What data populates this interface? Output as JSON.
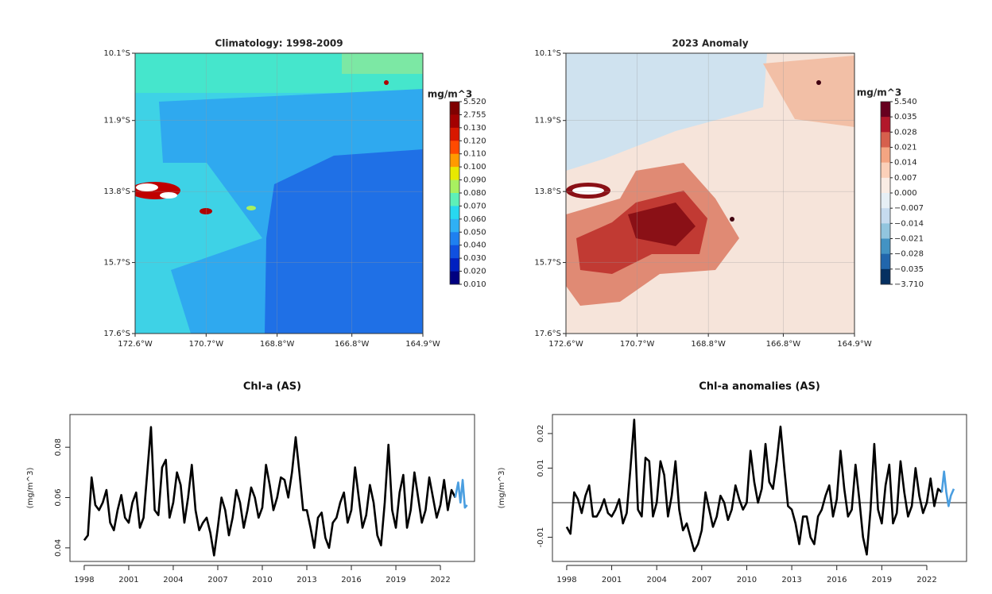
{
  "chart_data": [
    {
      "type": "map",
      "title": "Climatology: 1998-2009",
      "colorbar_label": "mg/m^3",
      "xlim": [
        -172.6,
        -164.9
      ],
      "ylim": [
        -17.6,
        -10.1
      ],
      "xticks": [
        {
          "value": -172.6,
          "label": "172.6°W"
        },
        {
          "value": -170.7,
          "label": "170.7°W"
        },
        {
          "value": -168.8,
          "label": "168.8°W"
        },
        {
          "value": -166.8,
          "label": "166.8°W"
        },
        {
          "value": -164.9,
          "label": "164.9°W"
        }
      ],
      "yticks": [
        {
          "value": -10.1,
          "label": "10.1°S"
        },
        {
          "value": -11.9,
          "label": "11.9°S"
        },
        {
          "value": -13.8,
          "label": "13.8°S"
        },
        {
          "value": -15.7,
          "label": "15.7°S"
        },
        {
          "value": -17.6,
          "label": "17.6°S"
        }
      ],
      "grid": true,
      "colorbar_levels": [
        {
          "value": 5.52,
          "label": "5.520"
        },
        {
          "value": 2.755,
          "label": "2.755"
        },
        {
          "value": 0.13,
          "label": "0.130"
        },
        {
          "value": 0.12,
          "label": "0.120"
        },
        {
          "value": 0.11,
          "label": "0.110"
        },
        {
          "value": 0.1,
          "label": "0.100"
        },
        {
          "value": 0.09,
          "label": "0.090"
        },
        {
          "value": 0.08,
          "label": "0.080"
        },
        {
          "value": 0.07,
          "label": "0.070"
        },
        {
          "value": 0.06,
          "label": "0.060"
        },
        {
          "value": 0.05,
          "label": "0.050"
        },
        {
          "value": 0.04,
          "label": "0.040"
        },
        {
          "value": 0.03,
          "label": "0.030"
        },
        {
          "value": 0.02,
          "label": "0.020"
        },
        {
          "value": 0.01,
          "label": "0.010"
        }
      ],
      "colorbar_colors": [
        "#7f0000",
        "#a30000",
        "#d81800",
        "#ff4a00",
        "#ff9a00",
        "#e8e800",
        "#a8f060",
        "#5ef0b8",
        "#28d8f0",
        "#2fb0f5",
        "#1f80f0",
        "#1050e0",
        "#0020c0",
        "#000080"
      ]
    },
    {
      "type": "map",
      "title": "2023 Anomaly",
      "colorbar_label": "mg/m^3",
      "xlim": [
        -172.6,
        -164.9
      ],
      "ylim": [
        -17.6,
        -10.1
      ],
      "xticks": [
        {
          "value": -172.6,
          "label": "172.6°W"
        },
        {
          "value": -170.7,
          "label": "170.7°W"
        },
        {
          "value": -168.8,
          "label": "168.8°W"
        },
        {
          "value": -166.8,
          "label": "166.8°W"
        },
        {
          "value": -164.9,
          "label": "164.9°W"
        }
      ],
      "yticks": [
        {
          "value": -10.1,
          "label": "10.1°S"
        },
        {
          "value": -11.9,
          "label": "11.9°S"
        },
        {
          "value": -13.8,
          "label": "13.8°S"
        },
        {
          "value": -15.7,
          "label": "15.7°S"
        },
        {
          "value": -17.6,
          "label": "17.6°S"
        }
      ],
      "grid": true,
      "colorbar_levels": [
        {
          "value": 5.54,
          "label": "5.540"
        },
        {
          "value": 0.035,
          "label": "0.035"
        },
        {
          "value": 0.028,
          "label": "0.028"
        },
        {
          "value": 0.021,
          "label": "0.021"
        },
        {
          "value": 0.014,
          "label": "0.014"
        },
        {
          "value": 0.007,
          "label": "0.007"
        },
        {
          "value": 0,
          "label": "0.000"
        },
        {
          "value": -0.007,
          "label": "−0.007"
        },
        {
          "value": -0.014,
          "label": "−0.014"
        },
        {
          "value": -0.021,
          "label": "−0.021"
        },
        {
          "value": -0.028,
          "label": "−0.028"
        },
        {
          "value": -0.035,
          "label": "−0.035"
        },
        {
          "value": -3.71,
          "label": "−3.710"
        }
      ],
      "colorbar_colors": [
        "#67001f",
        "#b2182b",
        "#d6604d",
        "#f4a582",
        "#fbd0b9",
        "#f9ece4",
        "#e6eff5",
        "#c6dbef",
        "#92c5de",
        "#4393c3",
        "#2166ac",
        "#053061"
      ]
    },
    {
      "type": "line",
      "title": "Chl-a (AS)",
      "y_label": "(mg/m^3)",
      "xlim": [
        1997.04,
        2024.3
      ],
      "ylim": [
        0.0346,
        0.093
      ],
      "xticks": [
        1998,
        2001,
        2004,
        2007,
        2010,
        2013,
        2016,
        2019,
        2022
      ],
      "yticks": [
        0.04,
        0.06,
        0.08
      ],
      "series": [
        {
          "color": "#000000",
          "x": [
            1998.0,
            1998.25,
            1998.5,
            1998.75,
            1999.0,
            1999.25,
            1999.5,
            1999.75,
            2000.0,
            2000.25,
            2000.5,
            2000.75,
            2001.0,
            2001.25,
            2001.5,
            2001.75,
            2002.0,
            2002.25,
            2002.5,
            2002.75,
            2003.0,
            2003.25,
            2003.5,
            2003.75,
            2004.0,
            2004.25,
            2004.5,
            2004.75,
            2005.0,
            2005.25,
            2005.5,
            2005.75,
            2006.0,
            2006.25,
            2006.5,
            2006.75,
            2007.0,
            2007.25,
            2007.5,
            2007.75,
            2008.0,
            2008.25,
            2008.5,
            2008.75,
            2009.0,
            2009.25,
            2009.5,
            2009.75,
            2010.0,
            2010.25,
            2010.5,
            2010.75,
            2011.0,
            2011.25,
            2011.5,
            2011.75,
            2012.0,
            2012.25,
            2012.5,
            2012.75,
            2013.0,
            2013.25,
            2013.5,
            2013.75,
            2014.0,
            2014.25,
            2014.5,
            2014.75,
            2015.0,
            2015.25,
            2015.5,
            2015.75,
            2016.0,
            2016.25,
            2016.5,
            2016.75,
            2017.0,
            2017.25,
            2017.5,
            2017.75,
            2018.0,
            2018.25,
            2018.5,
            2018.75,
            2019.0,
            2019.25,
            2019.5,
            2019.75,
            2020.0,
            2020.25,
            2020.5,
            2020.75,
            2021.0,
            2021.25,
            2021.5,
            2021.75,
            2022.0,
            2022.25,
            2022.5,
            2022.75,
            2023.0
          ],
          "values": [
            0.043,
            0.045,
            0.068,
            0.057,
            0.055,
            0.058,
            0.063,
            0.05,
            0.047,
            0.055,
            0.061,
            0.052,
            0.05,
            0.058,
            0.062,
            0.048,
            0.052,
            0.07,
            0.088,
            0.055,
            0.053,
            0.072,
            0.075,
            0.052,
            0.058,
            0.07,
            0.065,
            0.05,
            0.06,
            0.073,
            0.055,
            0.047,
            0.05,
            0.052,
            0.046,
            0.037,
            0.048,
            0.06,
            0.055,
            0.045,
            0.052,
            0.063,
            0.058,
            0.048,
            0.055,
            0.064,
            0.06,
            0.052,
            0.056,
            0.073,
            0.065,
            0.055,
            0.06,
            0.068,
            0.067,
            0.06,
            0.07,
            0.084,
            0.07,
            0.055,
            0.055,
            0.048,
            0.04,
            0.052,
            0.054,
            0.044,
            0.04,
            0.05,
            0.052,
            0.058,
            0.062,
            0.05,
            0.055,
            0.072,
            0.06,
            0.048,
            0.053,
            0.065,
            0.058,
            0.045,
            0.041,
            0.058,
            0.081,
            0.055,
            0.048,
            0.062,
            0.069,
            0.048,
            0.055,
            0.07,
            0.06,
            0.05,
            0.055,
            0.068,
            0.06,
            0.052,
            0.057,
            0.067,
            0.055,
            0.063,
            0.06
          ]
        },
        {
          "color": "#4a9ee0",
          "x": [
            2023.0,
            2023.2,
            2023.35,
            2023.5,
            2023.65,
            2023.8
          ],
          "values": [
            0.06,
            0.066,
            0.058,
            0.067,
            0.056,
            0.057
          ]
        }
      ]
    },
    {
      "type": "line",
      "title": "Chl-a anomalies (AS)",
      "y_label": "(mg/m^3)",
      "xlim": [
        1997.05,
        2024.65
      ],
      "ylim": [
        -0.017,
        0.0255
      ],
      "xticks": [
        1998,
        2001,
        2004,
        2007,
        2010,
        2013,
        2016,
        2019,
        2022
      ],
      "yticks": [
        -0.01,
        0.01,
        0.02
      ],
      "reference_line": 0,
      "series": [
        {
          "color": "#000000",
          "x": [
            1998.0,
            1998.25,
            1998.5,
            1998.75,
            1999.0,
            1999.25,
            1999.5,
            1999.75,
            2000.0,
            2000.25,
            2000.5,
            2000.75,
            2001.0,
            2001.25,
            2001.5,
            2001.75,
            2002.0,
            2002.25,
            2002.5,
            2002.75,
            2003.0,
            2003.25,
            2003.5,
            2003.75,
            2004.0,
            2004.25,
            2004.5,
            2004.75,
            2005.0,
            2005.25,
            2005.5,
            2005.75,
            2006.0,
            2006.25,
            2006.5,
            2006.75,
            2007.0,
            2007.25,
            2007.5,
            2007.75,
            2008.0,
            2008.25,
            2008.5,
            2008.75,
            2009.0,
            2009.25,
            2009.5,
            2009.75,
            2010.0,
            2010.25,
            2010.5,
            2010.75,
            2011.0,
            2011.25,
            2011.5,
            2011.75,
            2012.0,
            2012.25,
            2012.5,
            2012.75,
            2013.0,
            2013.25,
            2013.5,
            2013.75,
            2014.0,
            2014.25,
            2014.5,
            2014.75,
            2015.0,
            2015.25,
            2015.5,
            2015.75,
            2016.0,
            2016.25,
            2016.5,
            2016.75,
            2017.0,
            2017.25,
            2017.5,
            2017.75,
            2018.0,
            2018.25,
            2018.5,
            2018.75,
            2019.0,
            2019.25,
            2019.5,
            2019.75,
            2020.0,
            2020.25,
            2020.5,
            2020.75,
            2021.0,
            2021.25,
            2021.5,
            2021.75,
            2022.0,
            2022.25,
            2022.5,
            2022.75,
            2023.0
          ],
          "values": [
            -0.007,
            -0.009,
            0.003,
            0.001,
            -0.003,
            0.002,
            0.005,
            -0.004,
            -0.004,
            -0.002,
            0.001,
            -0.003,
            -0.004,
            -0.002,
            0.001,
            -0.006,
            -0.003,
            0.01,
            0.024,
            -0.002,
            -0.004,
            0.013,
            0.012,
            -0.004,
            0,
            0.012,
            0.008,
            -0.004,
            0.002,
            0.012,
            -0.002,
            -0.008,
            -0.006,
            -0.01,
            -0.014,
            -0.012,
            -0.008,
            0.003,
            -0.002,
            -0.007,
            -0.004,
            0.002,
            0,
            -0.005,
            -0.002,
            0.005,
            0.001,
            -0.002,
            0,
            0.015,
            0.006,
            0,
            0.004,
            0.017,
            0.006,
            0.004,
            0.012,
            0.022,
            0.01,
            -0.001,
            -0.002,
            -0.006,
            -0.012,
            -0.004,
            -0.004,
            -0.01,
            -0.012,
            -0.004,
            -0.002,
            0.002,
            0.005,
            -0.004,
            0.001,
            0.015,
            0.004,
            -0.004,
            -0.002,
            0.011,
            0.001,
            -0.01,
            -0.015,
            -0.002,
            0.017,
            -0.002,
            -0.006,
            0.005,
            0.011,
            -0.006,
            -0.003,
            0.012,
            0.003,
            -0.004,
            -0.001,
            0.01,
            0.002,
            -0.003,
            0,
            0.007,
            -0.001,
            0.004,
            0.003
          ]
        },
        {
          "color": "#4a9ee0",
          "x": [
            2023.0,
            2023.15,
            2023.3,
            2023.45,
            2023.6,
            2023.8
          ],
          "values": [
            0.003,
            0.009,
            0.003,
            -0.001,
            0.002,
            0.004
          ]
        }
      ]
    }
  ]
}
